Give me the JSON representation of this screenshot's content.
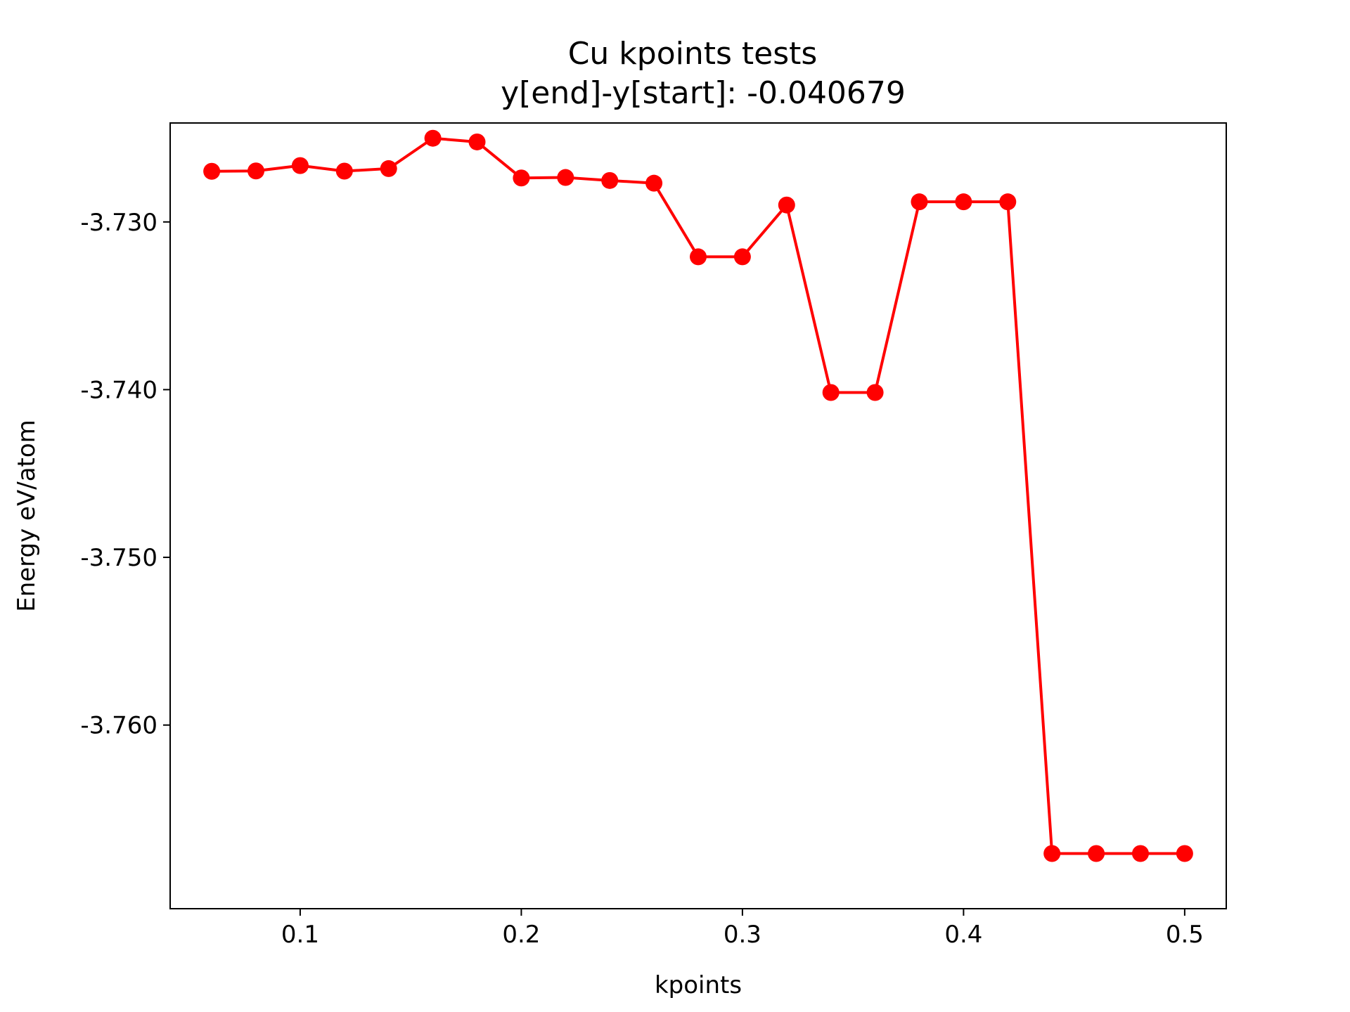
{
  "chart_data": {
    "type": "line",
    "title": "Cu kpoints tests",
    "subtitle": "y[end]-y[start]:  -0.040679",
    "xlabel": "kpoints",
    "ylabel": "Energy eV/atom",
    "xlim": [
      0.0412,
      0.5188
    ],
    "ylim": [
      -3.77095,
      -3.7241
    ],
    "x_ticks": [
      0.1,
      0.2,
      0.3,
      0.4,
      0.5
    ],
    "x_tick_labels": [
      "0.1",
      "0.2",
      "0.3",
      "0.4",
      "0.5"
    ],
    "y_ticks": [
      -3.73,
      -3.74,
      -3.75,
      -3.76
    ],
    "y_tick_labels": [
      "-3.730",
      "-3.740",
      "-3.750",
      "-3.760"
    ],
    "grid": false,
    "series": [
      {
        "color": "#ff0000",
        "marker": "circle",
        "x": [
          0.06,
          0.08,
          0.1,
          0.12,
          0.14,
          0.16,
          0.18,
          0.2,
          0.22,
          0.24,
          0.26,
          0.28,
          0.3,
          0.32,
          0.34,
          0.36,
          0.38,
          0.4,
          0.42,
          0.44,
          0.46,
          0.48,
          0.5
        ],
        "y": [
          -3.72698,
          -3.72696,
          -3.72664,
          -3.72697,
          -3.72682,
          -3.72501,
          -3.72523,
          -3.72738,
          -3.72735,
          -3.72753,
          -3.72769,
          -3.73208,
          -3.73208,
          -3.72899,
          -3.74017,
          -3.74017,
          -3.7288,
          -3.7288,
          -3.7288,
          -3.76766,
          -3.76766,
          -3.76766,
          -3.76766
        ]
      }
    ]
  }
}
